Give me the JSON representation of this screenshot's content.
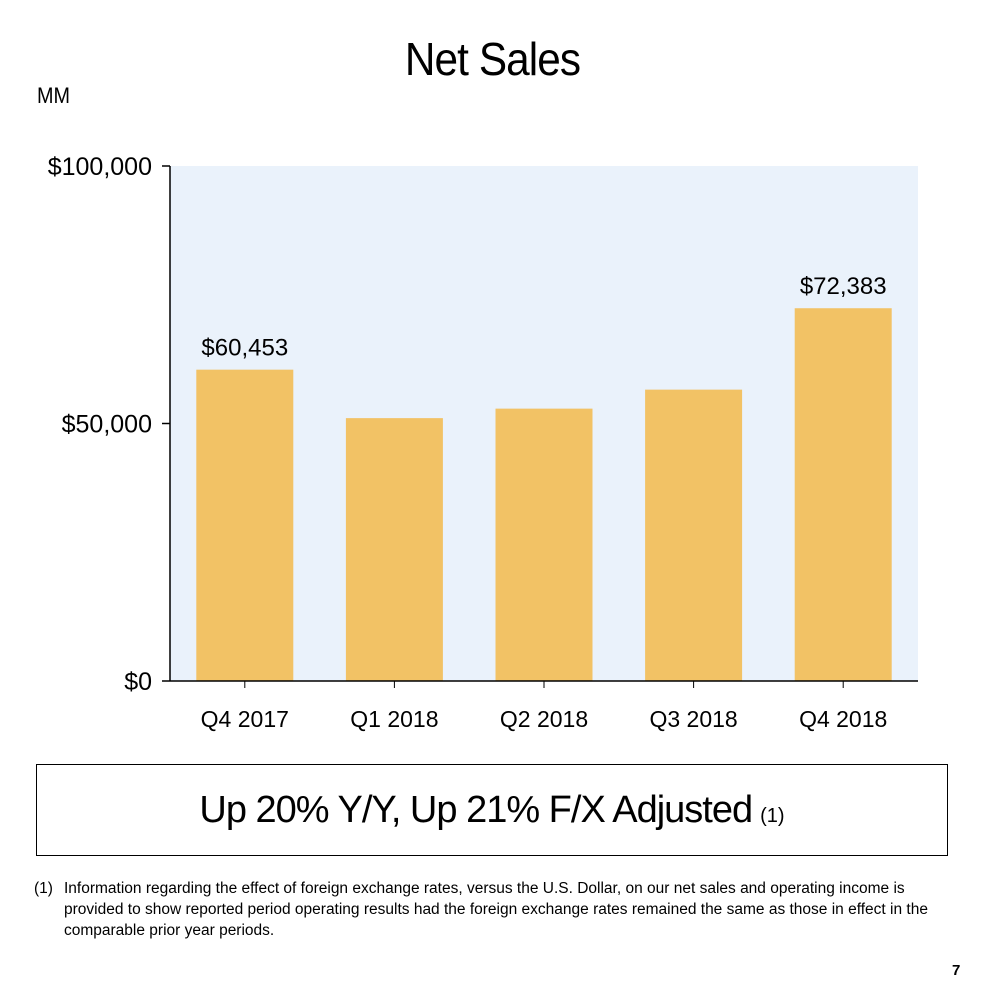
{
  "title": "Net Sales",
  "unit_label": "MM",
  "chart_data": {
    "type": "bar",
    "categories": [
      "Q4 2017",
      "Q1 2018",
      "Q2 2018",
      "Q3 2018",
      "Q4 2018"
    ],
    "values": [
      60453,
      51042,
      52886,
      56576,
      72383
    ],
    "data_labels": [
      "$60,453",
      "",
      "",
      "",
      "$72,383"
    ],
    "ylim": [
      0,
      100000
    ],
    "yticks": [
      0,
      50000,
      100000
    ],
    "ytick_labels": [
      "$0",
      "$50,000",
      "$100,000"
    ],
    "xlabel": "",
    "ylabel": "",
    "grid": false,
    "colors": {
      "bar": "#F2C265",
      "plot_bg": "#EAF2FB",
      "axis": "#000000"
    }
  },
  "callout": {
    "text": "Up 20% Y/Y, Up 21% F/X Adjusted",
    "ref": "(1)"
  },
  "footnote": {
    "marker": "(1)",
    "text": "Information regarding the effect of foreign exchange rates, versus the U.S. Dollar, on our net sales and operating income is provided to show reported period operating results had the foreign exchange rates remained the same as those in effect in the comparable prior year periods."
  },
  "page_number": "7"
}
